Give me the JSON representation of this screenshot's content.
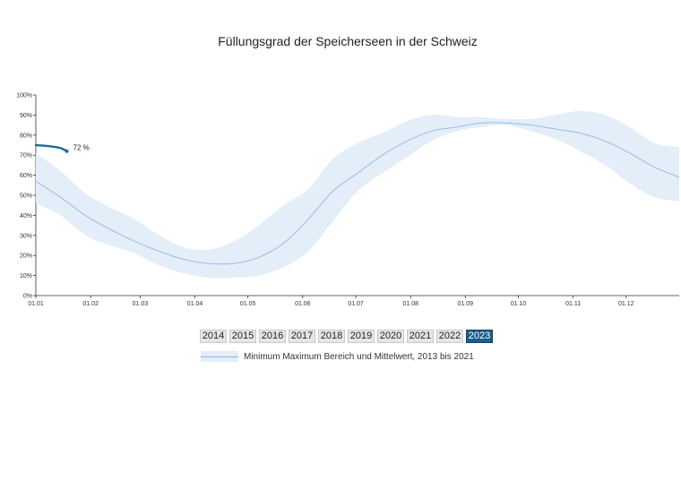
{
  "chart_data": {
    "type": "area",
    "title": "Füllungsgrad der Speicherseen in der Schweiz",
    "yticks": [
      "0%",
      "10%",
      "20%",
      "30%",
      "40%",
      "50%",
      "60%",
      "70%",
      "80%",
      "90%",
      "100%"
    ],
    "ylim": [
      0,
      100
    ],
    "xlim": [
      0,
      52
    ],
    "xticks": [
      {
        "label": "01.01",
        "x": 0
      },
      {
        "label": "01.02",
        "x": 4.43
      },
      {
        "label": "01.03",
        "x": 8.43
      },
      {
        "label": "01.04",
        "x": 12.86
      },
      {
        "label": "01.05",
        "x": 17.14
      },
      {
        "label": "01.06",
        "x": 21.57
      },
      {
        "label": "01.07",
        "x": 25.86
      },
      {
        "label": "01.08",
        "x": 30.29
      },
      {
        "label": "01.09",
        "x": 34.71
      },
      {
        "label": "01.10",
        "x": 39.0
      },
      {
        "label": "01.11",
        "x": 43.43
      },
      {
        "label": "01.12",
        "x": 47.71
      }
    ],
    "band": {
      "x": [
        0,
        2,
        4,
        6,
        8,
        10,
        12,
        14,
        16,
        18,
        20,
        22,
        24,
        26,
        28,
        30,
        32,
        34,
        36,
        38,
        40,
        42,
        44,
        46,
        48,
        50,
        52
      ],
      "min": [
        46,
        40,
        30,
        25,
        21,
        15,
        11,
        9,
        9,
        10,
        14,
        22,
        37,
        52,
        61,
        69,
        77,
        82,
        84,
        85,
        82,
        78,
        72,
        65,
        56,
        49,
        47
      ],
      "max": [
        71,
        62,
        51,
        44,
        38,
        30,
        24,
        23,
        27,
        35,
        45,
        53,
        68,
        76,
        81,
        87,
        90,
        89,
        89,
        88,
        88,
        90,
        92,
        90,
        84,
        76,
        74
      ],
      "mean": [
        57,
        49,
        40,
        33,
        27,
        22,
        18,
        16,
        16,
        19,
        26,
        38,
        52,
        61,
        70,
        77,
        82,
        84,
        86,
        86,
        85,
        83,
        81,
        77,
        71,
        64,
        59
      ]
    },
    "series": [
      {
        "name": "2023",
        "x": [
          0,
          1,
          2,
          2.5
        ],
        "values": [
          75,
          74.5,
          73.5,
          72
        ]
      }
    ],
    "last_value_label": "72 %",
    "colors": {
      "band": "#e3eef8",
      "mean": "#8db8dc",
      "current": "#1b6e9a"
    }
  },
  "year_buttons": [
    "2014",
    "2015",
    "2016",
    "2017",
    "2018",
    "2019",
    "2020",
    "2021",
    "2022",
    "2023"
  ],
  "active_year": "2023",
  "legend_label": "Minimum Maximum Bereich und Mittelwert, 2013 bis 2021"
}
